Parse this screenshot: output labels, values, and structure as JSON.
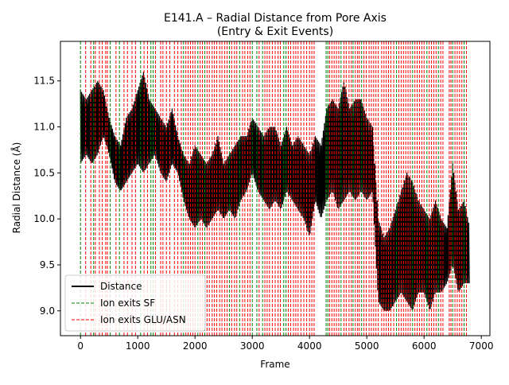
{
  "chart_data": {
    "type": "line",
    "title": "E141.A – Radial Distance from Pore Axis",
    "subtitle": "(Entry & Exit Events)",
    "xlabel": "Frame",
    "ylabel": "Radial Distance (Å)",
    "xlim": [
      -350,
      7150
    ],
    "ylim": [
      8.73,
      11.93
    ],
    "xticks": [
      0,
      1000,
      2000,
      3000,
      4000,
      5000,
      6000,
      7000
    ],
    "xtick_labels": [
      "0",
      "1000",
      "2000",
      "3000",
      "4000",
      "5000",
      "6000",
      "7000"
    ],
    "yticks": [
      9.0,
      9.5,
      10.0,
      10.5,
      11.0,
      11.5
    ],
    "ytick_labels": [
      "9.0",
      "9.5",
      "10.0",
      "10.5",
      "11.0",
      "11.5"
    ],
    "grid": false,
    "legend_position": "lower-left",
    "legend": [
      {
        "label": "Distance",
        "color": "#000000",
        "style": "solid"
      },
      {
        "label": "Ion exits SF",
        "color": "#008000",
        "style": "dashed"
      },
      {
        "label": "Ion exits GLU/ASN",
        "color": "#ff0000",
        "style": "dashed"
      }
    ],
    "series": [
      {
        "name": "Distance",
        "color": "#000000",
        "x": [
          0,
          100,
          200,
          300,
          400,
          500,
          600,
          700,
          800,
          900,
          1000,
          1100,
          1200,
          1300,
          1400,
          1500,
          1600,
          1700,
          1800,
          1900,
          2000,
          2100,
          2200,
          2300,
          2400,
          2500,
          2600,
          2700,
          2800,
          2900,
          3000,
          3100,
          3200,
          3300,
          3400,
          3500,
          3600,
          3700,
          3800,
          3900,
          4000,
          4100,
          4200,
          4300,
          4400,
          4500,
          4600,
          4700,
          4800,
          4900,
          5000,
          5100,
          5200,
          5300,
          5400,
          5500,
          5600,
          5700,
          5800,
          5900,
          6000,
          6100,
          6200,
          6300,
          6400,
          6500,
          6600,
          6700,
          6800
        ],
        "low": [
          10.6,
          10.7,
          10.6,
          10.7,
          10.9,
          10.7,
          10.4,
          10.3,
          10.4,
          10.5,
          10.6,
          10.5,
          10.6,
          10.7,
          10.5,
          10.4,
          10.6,
          10.5,
          10.2,
          10.0,
          9.9,
          10.0,
          9.9,
          10.0,
          10.1,
          10.0,
          10.1,
          10.0,
          10.2,
          10.3,
          10.5,
          10.3,
          10.2,
          10.1,
          10.2,
          10.1,
          10.3,
          10.2,
          10.1,
          10.0,
          9.8,
          10.2,
          10.0,
          10.2,
          10.3,
          10.1,
          10.2,
          10.3,
          10.2,
          10.3,
          10.2,
          10.3,
          9.1,
          9.0,
          9.0,
          9.1,
          9.2,
          9.1,
          9.0,
          9.2,
          9.2,
          9.0,
          9.2,
          9.2,
          9.3,
          9.5,
          9.2,
          9.3,
          9.3
        ],
        "high": [
          11.4,
          11.3,
          11.4,
          11.5,
          11.4,
          11.1,
          10.9,
          10.8,
          11.1,
          11.2,
          11.4,
          11.6,
          11.3,
          11.2,
          11.1,
          11.0,
          11.2,
          10.9,
          10.7,
          10.6,
          10.8,
          10.7,
          10.6,
          10.7,
          10.9,
          10.6,
          10.7,
          10.8,
          10.9,
          10.9,
          11.1,
          11.0,
          10.9,
          11.0,
          11.0,
          10.8,
          11.0,
          10.8,
          10.9,
          10.8,
          10.7,
          10.9,
          10.8,
          11.2,
          11.3,
          11.2,
          11.5,
          11.2,
          11.3,
          11.3,
          11.1,
          11.0,
          10.0,
          9.8,
          9.9,
          10.1,
          10.3,
          10.5,
          10.4,
          10.2,
          10.1,
          10.0,
          10.2,
          10.0,
          9.9,
          10.6,
          10.1,
          10.2,
          9.9
        ]
      }
    ],
    "events_sf": [
      0,
      230,
      520,
      680,
      1050,
      1230,
      1270,
      1800,
      2050,
      2170,
      2600,
      2780,
      3000,
      3080,
      3180,
      3550,
      3590,
      4290,
      4320,
      4550,
      4760,
      4910,
      5520,
      5800,
      6050,
      6250,
      6500,
      6700
    ],
    "events_glu_asn": [
      90,
      180,
      260,
      330,
      380,
      440,
      470,
      620,
      760,
      820,
      900,
      960,
      1110,
      1170,
      1310,
      1400,
      1440,
      1500,
      1560,
      1640,
      1700,
      1760,
      1840,
      1880,
      1920,
      1960,
      2000,
      2090,
      2130,
      2210,
      2250,
      2300,
      2340,
      2380,
      2430,
      2470,
      2520,
      2560,
      2640,
      2690,
      2730,
      2830,
      2870,
      2920,
      2960,
      3120,
      3220,
      3260,
      3300,
      3350,
      3400,
      3450,
      3490,
      3630,
      3670,
      3720,
      3760,
      3800,
      3850,
      3900,
      3950,
      4000,
      4040,
      4080,
      4350,
      4390,
      4430,
      4470,
      4510,
      4600,
      4640,
      4690,
      4730,
      4800,
      4840,
      4870,
      4950,
      4990,
      5040,
      5080,
      5120,
      5160,
      5200,
      5260,
      5300,
      5340,
      5380,
      5420,
      5470,
      5560,
      5600,
      5640,
      5680,
      5720,
      5760,
      5840,
      5880,
      5920,
      5960,
      6000,
      6090,
      6130,
      6170,
      6210,
      6290,
      6330,
      6440,
      6470,
      6540,
      6580,
      6620,
      6660,
      6740
    ]
  }
}
